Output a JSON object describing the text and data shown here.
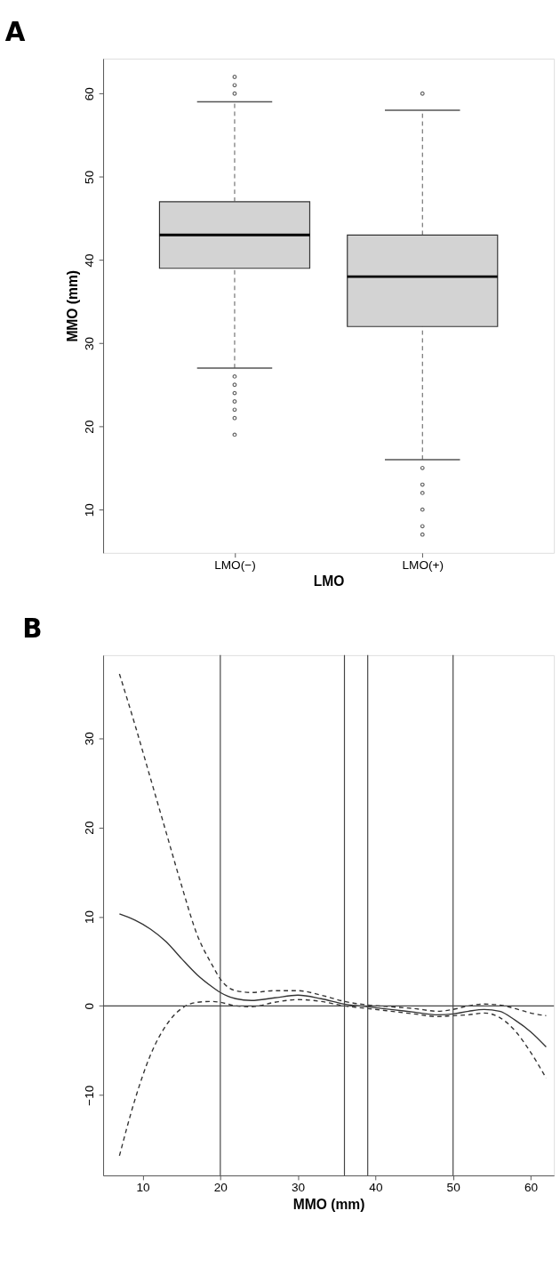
{
  "chart_data": [
    {
      "type": "box",
      "title": "A",
      "xlabel": "LMO",
      "ylabel": "MMO (mm)",
      "categories": [
        "LMO(−)",
        "LMO(+)"
      ],
      "ylim": [
        4.8,
        64.2
      ],
      "yticks": [
        10,
        20,
        30,
        40,
        50,
        60
      ],
      "grid": false,
      "color": "#d3d3d3",
      "boxes": [
        {
          "low": 27,
          "q1": 39,
          "median": 43,
          "q3": 47,
          "high": 59,
          "outliers": [
            62,
            61,
            60,
            26,
            25,
            24,
            23,
            22,
            21,
            19
          ]
        },
        {
          "low": 16,
          "q1": 32,
          "median": 38,
          "q3": 43,
          "high": 58,
          "outliers": [
            60,
            15,
            13,
            12,
            10,
            8,
            7
          ]
        }
      ]
    },
    {
      "type": "line",
      "title": "B",
      "xlabel": "MMO (mm)",
      "xlim": [
        4.9,
        63
      ],
      "xticks": [
        10,
        20,
        30,
        40,
        50,
        60
      ],
      "ylim": [
        -19,
        39.3
      ],
      "yticks": [
        -10,
        0,
        10,
        20,
        30
      ],
      "grid": false,
      "marker": "none",
      "x": [
        7,
        9,
        11,
        13,
        15,
        17,
        19,
        20,
        22,
        24,
        27,
        30,
        33,
        36,
        39,
        42,
        45,
        48,
        50,
        52,
        54,
        56,
        58,
        60,
        62
      ],
      "series": [
        {
          "color": "#333333",
          "line_style": "solid",
          "values": [
            10.3,
            9.6,
            8.6,
            7.2,
            5.3,
            3.5,
            2.1,
            1.5,
            0.8,
            0.6,
            0.9,
            1.2,
            0.8,
            0.2,
            -0.1,
            -0.4,
            -0.7,
            -1.0,
            -0.9,
            -0.6,
            -0.4,
            -0.6,
            -1.6,
            -2.9,
            -4.6
          ]
        },
        {
          "color": "#333333",
          "line_style": "dashed",
          "values": [
            37.2,
            31.5,
            25.5,
            19.5,
            13.5,
            8,
            4.5,
            3,
            1.7,
            1.5,
            1.7,
            1.7,
            1.2,
            0.5,
            0.1,
            -0.1,
            -0.3,
            -0.6,
            -0.4,
            0,
            0.2,
            0.1,
            -0.3,
            -0.8,
            -1.1
          ]
        },
        {
          "color": "#333333",
          "line_style": "dashed",
          "values": [
            -16.8,
            -10.5,
            -5.5,
            -2.2,
            -0.3,
            0.4,
            0.5,
            0.4,
            0,
            -0.1,
            0.4,
            0.7,
            0.5,
            0,
            -0.3,
            -0.6,
            -0.9,
            -1.2,
            -1.1,
            -1.0,
            -0.8,
            -1.3,
            -2.8,
            -5.2,
            -8.1
          ]
        }
      ],
      "ref_lines": [
        {
          "axis": "x",
          "value": 20,
          "color": "#444444"
        },
        {
          "axis": "x",
          "value": 36,
          "color": "#444444"
        },
        {
          "axis": "x",
          "value": 39,
          "color": "#444444"
        },
        {
          "axis": "x",
          "value": 50,
          "color": "#444444"
        },
        {
          "axis": "y",
          "value": 0,
          "color": "#444444"
        }
      ]
    }
  ]
}
